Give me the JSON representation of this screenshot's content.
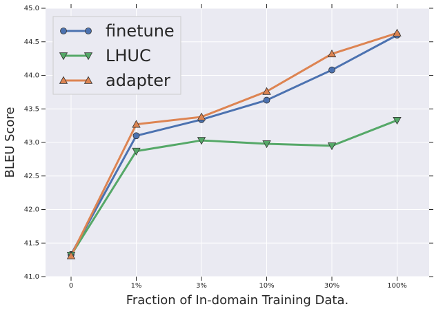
{
  "chart_data": {
    "type": "line",
    "x_label": "Fraction of In-domain Training Data.",
    "y_label": "BLEU Score",
    "categories": [
      "0",
      "1%",
      "3%",
      "10%",
      "30%",
      "100%"
    ],
    "series": [
      {
        "name": "finetune",
        "color": "#4C72B0",
        "marker": "o",
        "values": [
          41.33,
          43.1,
          43.34,
          43.63,
          44.08,
          44.6
        ]
      },
      {
        "name": "LHUC",
        "color": "#55A868",
        "marker": "v",
        "values": [
          41.32,
          42.87,
          43.03,
          42.98,
          42.95,
          43.33
        ]
      },
      {
        "name": "adapter",
        "color": "#DD8452",
        "marker": "^",
        "values": [
          41.31,
          43.27,
          43.38,
          43.76,
          44.32,
          44.63
        ]
      }
    ],
    "ylim": [
      41.0,
      45.0
    ],
    "yticks": [
      {
        "value": 41.0,
        "label": "41.0"
      },
      {
        "value": 41.5,
        "label": "41.5"
      },
      {
        "value": 42.0,
        "label": "42.0"
      },
      {
        "value": 42.5,
        "label": "42.5"
      },
      {
        "value": 43.0,
        "label": "43.0"
      },
      {
        "value": 43.5,
        "label": "43.5"
      },
      {
        "value": 44.0,
        "label": "44.0"
      },
      {
        "value": 44.5,
        "label": "44.5"
      },
      {
        "value": 45.0,
        "label": "45.0"
      }
    ],
    "grid": true,
    "legend": "upper left"
  }
}
